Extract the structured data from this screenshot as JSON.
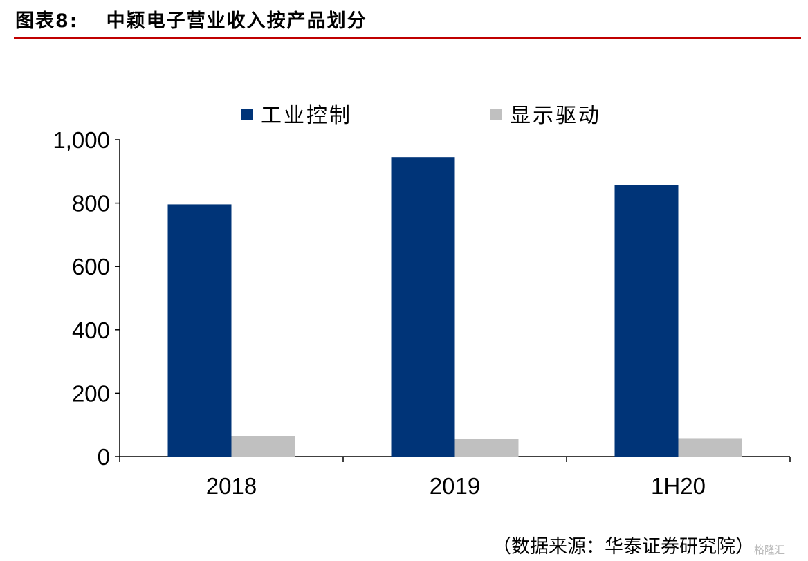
{
  "header": {
    "figure_no": "图表8:",
    "title": "中颖电子营业收入按产品划分"
  },
  "footer": {
    "source": "（数据来源：华泰证券研究院）",
    "watermark": "格隆汇"
  },
  "chart_data": {
    "type": "bar",
    "categories": [
      "2018",
      "2019",
      "1H20"
    ],
    "series": [
      {
        "name": "工业控制",
        "values": [
          796,
          945,
          857
        ],
        "color": "#003478"
      },
      {
        "name": "显示驱动",
        "values": [
          65,
          55,
          58
        ],
        "color": "#c0c0c0"
      }
    ],
    "ylim": [
      0,
      1000
    ],
    "yticks": [
      0,
      200,
      400,
      600,
      800,
      1000
    ],
    "ytick_labels": [
      "0",
      "200",
      "400",
      "600",
      "800",
      "1,000"
    ],
    "grid": false,
    "legend": "top-center"
  }
}
